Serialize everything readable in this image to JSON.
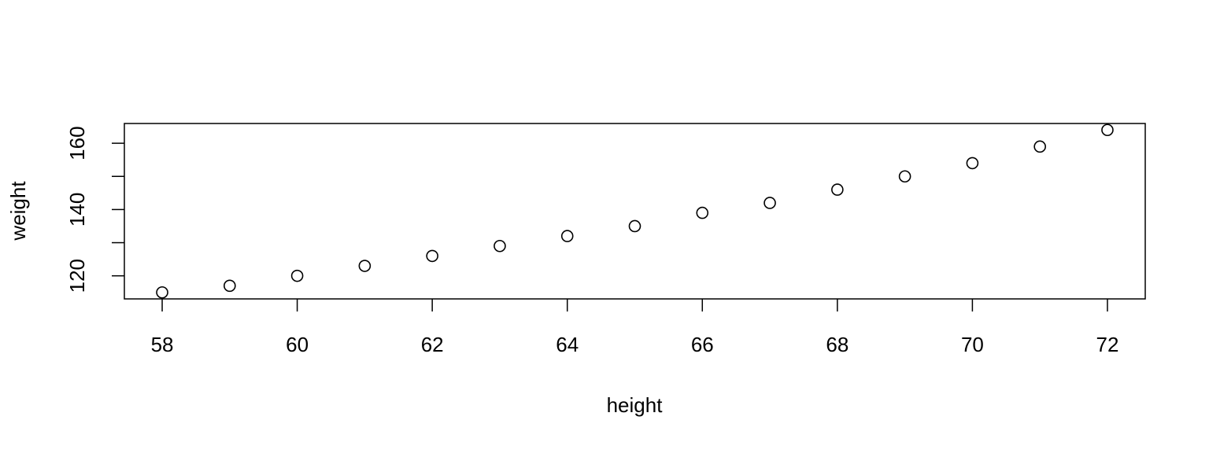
{
  "chart_data": {
    "type": "scatter",
    "x_label": "height",
    "y_label": "weight",
    "x": [
      58,
      59,
      60,
      61,
      62,
      63,
      64,
      65,
      66,
      67,
      68,
      69,
      70,
      71,
      72
    ],
    "values": [
      115,
      117,
      120,
      123,
      126,
      129,
      132,
      135,
      139,
      142,
      146,
      150,
      154,
      159,
      164
    ],
    "color": "#000000",
    "xlim": [
      57.44,
      72.56
    ],
    "xticks": [
      58,
      60,
      62,
      64,
      66,
      68,
      70,
      72
    ],
    "ylim": [
      113.04,
      165.96
    ],
    "yticks": [
      120,
      {
        "value": 130,
        "label": null
      },
      140,
      {
        "value": 150,
        "label": null
      },
      160
    ],
    "grid": false
  }
}
